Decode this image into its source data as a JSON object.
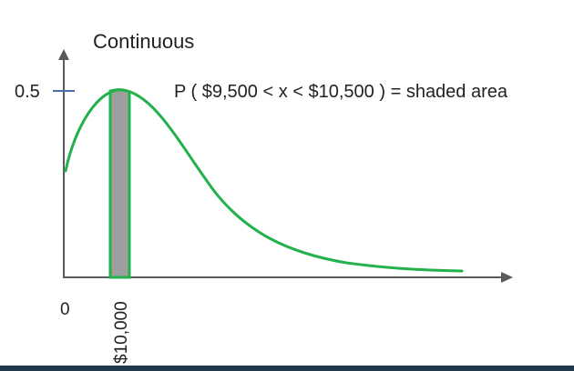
{
  "diagram": {
    "title": "Continuous",
    "y_tick_label": "0.5",
    "x_origin_label": "0",
    "x_marker_label": "$10,000",
    "annotation": "P ( $9,500 < x < $10,500 ) = shaded area"
  },
  "colors": {
    "curve": "#22b14c",
    "shade": "#9e9e9e",
    "axis": "#5a5a5a",
    "tick": "#4a6fa5",
    "text": "#222222"
  }
}
